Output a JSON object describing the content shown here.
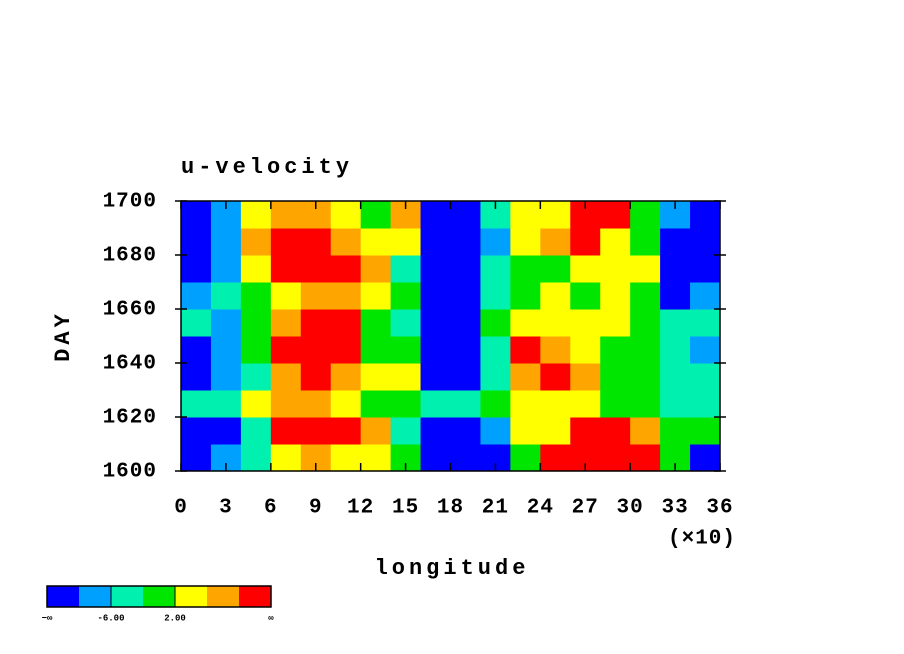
{
  "chart_data": {
    "type": "heatmap",
    "title": "u-velocity",
    "x_label": "longitude",
    "x_multiplier": "(×10)",
    "y_label": "DAY",
    "xlim": [
      0,
      36
    ],
    "xticks": [
      0,
      3,
      6,
      9,
      12,
      15,
      18,
      21,
      24,
      27,
      30,
      33,
      36
    ],
    "ylim": [
      1600,
      1700
    ],
    "yticks": [
      1600,
      1620,
      1640,
      1660,
      1680,
      1700
    ],
    "xbins": [
      0,
      2,
      4,
      6,
      8,
      10,
      12,
      14,
      16,
      18,
      20,
      22,
      24,
      26,
      28,
      30,
      32,
      34,
      36
    ],
    "ybins": [
      1600,
      1610,
      1620,
      1630,
      1640,
      1650,
      1660,
      1670,
      1680,
      1690,
      1700
    ],
    "z": [
      [
        -12,
        -8,
        -4,
        4,
        8,
        4,
        4,
        0,
        -12,
        -12,
        -12,
        0,
        12,
        12,
        12,
        12,
        0,
        -12
      ],
      [
        -12,
        -12,
        -4,
        12,
        12,
        12,
        8,
        -4,
        -12,
        -12,
        -8,
        4,
        4,
        12,
        12,
        8,
        0,
        0
      ],
      [
        -4,
        -4,
        4,
        8,
        8,
        4,
        0,
        0,
        -4,
        -4,
        0,
        4,
        4,
        4,
        0,
        0,
        -4,
        -4
      ],
      [
        -12,
        -8,
        -4,
        8,
        12,
        8,
        4,
        4,
        -12,
        -12,
        -4,
        8,
        12,
        8,
        0,
        0,
        -4,
        -4
      ],
      [
        -12,
        -8,
        0,
        12,
        12,
        12,
        0,
        0,
        -12,
        -12,
        -4,
        12,
        8,
        4,
        0,
        0,
        -4,
        -8
      ],
      [
        -4,
        -8,
        0,
        8,
        12,
        12,
        0,
        -4,
        -12,
        -12,
        0,
        4,
        4,
        4,
        4,
        0,
        -4,
        -4
      ],
      [
        -8,
        -4,
        0,
        4,
        8,
        8,
        4,
        0,
        -12,
        -12,
        -4,
        0,
        4,
        0,
        4,
        0,
        -12,
        -8
      ],
      [
        -12,
        -8,
        4,
        12,
        12,
        12,
        8,
        -4,
        -12,
        -12,
        -4,
        0,
        0,
        4,
        4,
        4,
        -12,
        -12
      ],
      [
        -12,
        -8,
        8,
        12,
        12,
        8,
        4,
        4,
        -12,
        -12,
        -8,
        4,
        8,
        12,
        4,
        0,
        -12,
        -12
      ],
      [
        -12,
        -8,
        4,
        8,
        8,
        4,
        0,
        8,
        -12,
        -12,
        -4,
        4,
        4,
        12,
        12,
        0,
        -8,
        -12
      ]
    ],
    "colorbar": {
      "levels": [
        -10,
        -6,
        -2,
        2,
        6,
        10
      ],
      "colors": [
        "#0000ff",
        "#00a0ff",
        "#00f0b0",
        "#00e600",
        "#ffff00",
        "#ffa500",
        "#ff0000"
      ],
      "low_label": "−∞",
      "high_label": "∞",
      "ticks": [
        {
          "value": -6,
          "label": "-6.00"
        },
        {
          "value": 2,
          "label": "2.00"
        }
      ]
    }
  }
}
